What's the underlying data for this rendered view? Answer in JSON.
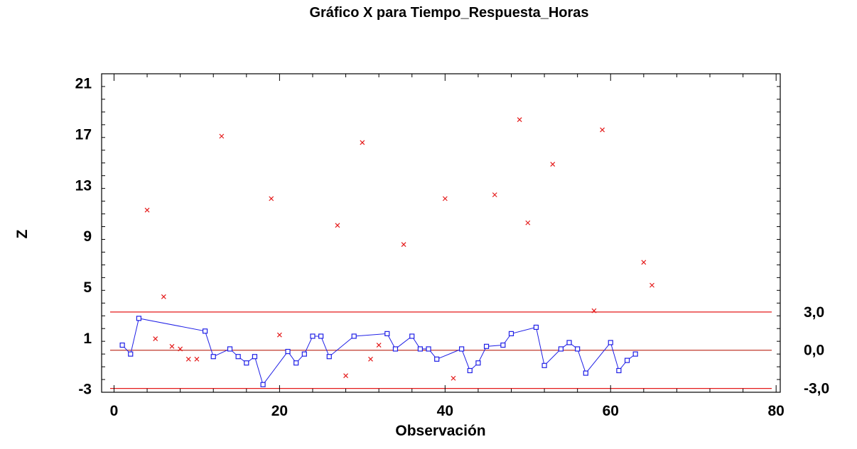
{
  "chart_data": {
    "type": "scatter",
    "title": "Gráfico X para Tiempo_Respuesta_Horas",
    "xlabel": "Observación",
    "ylabel": "Z",
    "xlim": [
      -1.5,
      80.5
    ],
    "ylim": [
      -3.3,
      21.7
    ],
    "x_ticks": [
      0,
      20,
      40,
      60,
      80
    ],
    "x_tick_labels": [
      "0",
      "20",
      "40",
      "60",
      "80"
    ],
    "y_ticks": [
      -3,
      1,
      5,
      9,
      13,
      17,
      21
    ],
    "y_tick_labels": [
      "-3",
      "1",
      "5",
      "9",
      "13",
      "17",
      "21"
    ],
    "control_limits": [
      {
        "name": "UCL",
        "value": 3.0,
        "label": "3,0",
        "color": "#e41a1a"
      },
      {
        "name": "CL",
        "value": 0.0,
        "label": "0,0",
        "color": "#c0392b"
      },
      {
        "name": "LCL",
        "value": -3.0,
        "label": "-3,0",
        "color": "#e41a1a"
      }
    ],
    "series": [
      {
        "marker": "square",
        "color": "#1f1fe6",
        "connected": true,
        "points": [
          [
            1,
            0.4
          ],
          [
            2,
            -0.3
          ],
          [
            3,
            2.5
          ],
          [
            11,
            1.5
          ],
          [
            12,
            -0.5
          ],
          [
            14,
            0.1
          ],
          [
            15,
            -0.5
          ],
          [
            16,
            -1.0
          ],
          [
            17,
            -0.5
          ],
          [
            18,
            -2.7
          ],
          [
            21,
            -0.1
          ],
          [
            22,
            -1.0
          ],
          [
            23,
            -0.3
          ],
          [
            24,
            1.1
          ],
          [
            25,
            1.1
          ],
          [
            26,
            -0.5
          ],
          [
            29,
            1.1
          ],
          [
            33,
            1.3
          ],
          [
            34,
            0.1
          ],
          [
            36,
            1.1
          ],
          [
            37,
            0.1
          ],
          [
            38,
            0.1
          ],
          [
            39,
            -0.7
          ],
          [
            42,
            0.1
          ],
          [
            43,
            -1.6
          ],
          [
            44,
            -1.0
          ],
          [
            45,
            0.3
          ],
          [
            47,
            0.4
          ],
          [
            48,
            1.3
          ],
          [
            51,
            1.8
          ],
          [
            52,
            -1.2
          ],
          [
            54,
            0.1
          ],
          [
            55,
            0.6
          ],
          [
            56,
            0.1
          ],
          [
            57,
            -1.8
          ],
          [
            60,
            0.6
          ],
          [
            61,
            -1.6
          ],
          [
            62,
            -0.8
          ],
          [
            63,
            -0.3
          ]
        ]
      },
      {
        "marker": "x",
        "color": "#e41a1a",
        "connected": false,
        "points": [
          [
            4,
            11.0
          ],
          [
            5,
            0.9
          ],
          [
            6,
            4.2
          ],
          [
            7,
            0.3
          ],
          [
            8,
            0.1
          ],
          [
            9,
            -0.7
          ],
          [
            10,
            -0.7
          ],
          [
            13,
            16.8
          ],
          [
            19,
            11.9
          ],
          [
            20,
            1.2
          ],
          [
            27,
            9.8
          ],
          [
            28,
            -2.0
          ],
          [
            30,
            16.3
          ],
          [
            31,
            -0.7
          ],
          [
            32,
            0.4
          ],
          [
            35,
            8.3
          ],
          [
            40,
            11.9
          ],
          [
            41,
            -2.2
          ],
          [
            46,
            12.2
          ],
          [
            49,
            18.1
          ],
          [
            50,
            10.0
          ],
          [
            53,
            14.6
          ],
          [
            58,
            3.1
          ],
          [
            59,
            17.3
          ],
          [
            64,
            6.9
          ],
          [
            65,
            5.1
          ]
        ]
      }
    ]
  }
}
